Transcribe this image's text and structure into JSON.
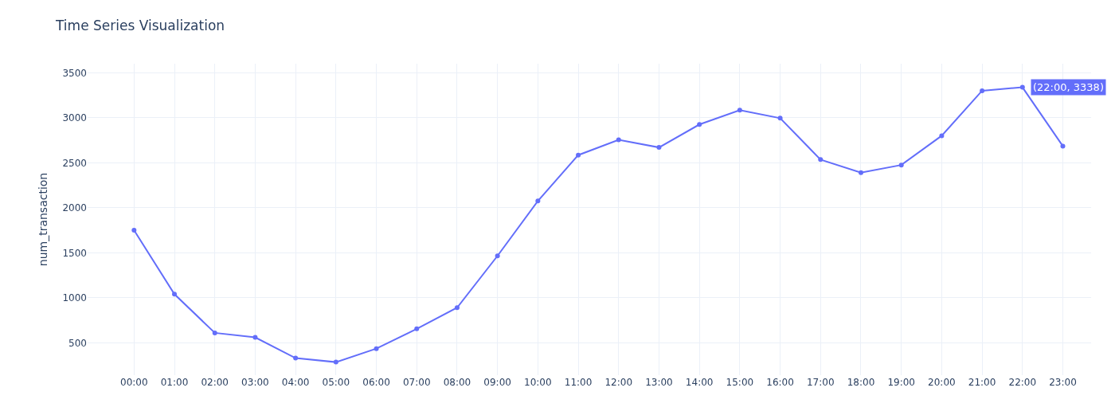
{
  "chart_data": {
    "type": "line",
    "title": "Time Series Visualization",
    "ylabel": "num_transaction",
    "categories": [
      "00:00",
      "01:00",
      "02:00",
      "03:00",
      "04:00",
      "05:00",
      "06:00",
      "07:00",
      "08:00",
      "09:00",
      "10:00",
      "11:00",
      "12:00",
      "13:00",
      "14:00",
      "15:00",
      "16:00",
      "17:00",
      "18:00",
      "19:00",
      "20:00",
      "21:00",
      "22:00",
      "23:00"
    ],
    "series": [
      {
        "color": "#636efa",
        "values": [
          1750,
          1040,
          610,
          560,
          330,
          285,
          435,
          655,
          890,
          1465,
          2075,
          2585,
          2755,
          2670,
          2925,
          3085,
          2995,
          2535,
          2390,
          2475,
          2800,
          3300,
          3338,
          2685
        ]
      }
    ],
    "ylim": [
      140,
      3600
    ],
    "yticks": [
      500,
      1000,
      1500,
      2000,
      2500,
      3000,
      3500
    ],
    "grid": true,
    "marker": "circle",
    "line_style": "solid",
    "legend": false,
    "annotations": [
      {
        "text": "(22:00, 3338)",
        "x": "22:00",
        "y": 3338
      }
    ]
  }
}
